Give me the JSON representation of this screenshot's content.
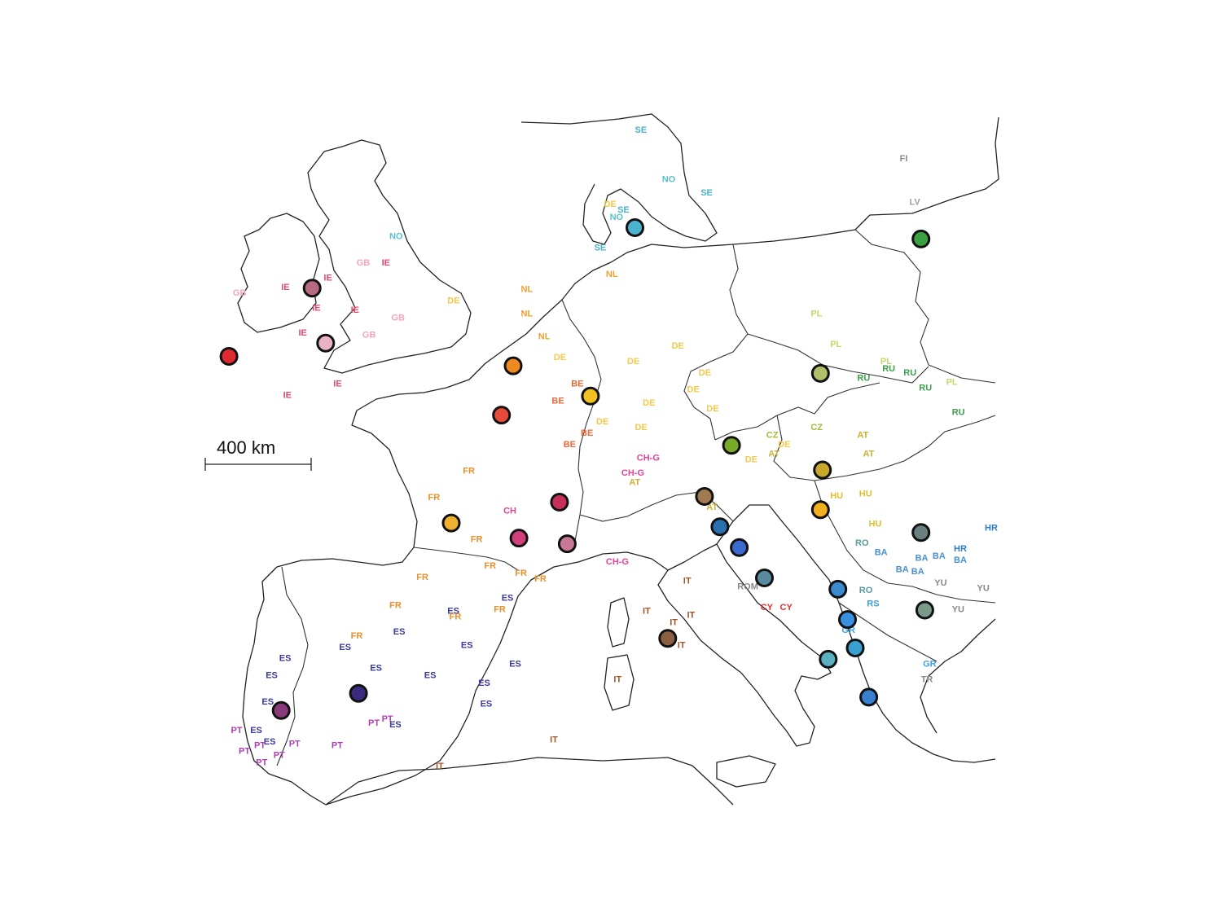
{
  "scale_bar": {
    "label": "400 km"
  },
  "colors": {
    "IE": "#e34a6b",
    "GB": "#f3a6b8",
    "FR": "#e8902a",
    "CH": "#e0449a",
    "DE": "#f2c94c",
    "NL": "#f0a030",
    "BE": "#e86a3a",
    "ES": "#3a3aa0",
    "PT": "#b040b0",
    "IT": "#a0552a",
    "SE": "#4bb3c8",
    "NO": "#5ac0d0",
    "PL": "#c9d46a",
    "RU": "#3aa04a",
    "CZ": "#a8b83a",
    "AT": "#c8b030",
    "HU": "#e0c030",
    "HR": "#2c7bc0",
    "BA": "#4a90d0",
    "RS": "#3aa0e0",
    "RO": "#5a9aa0",
    "GR": "#40a0e0",
    "CY": "#e03030",
    "LV": "#a0a0a0",
    "FI": "#888888"
  },
  "labels": [
    {
      "code": "SE",
      "lon": 12.1,
      "lat": 67.0
    },
    {
      "code": "NO",
      "lon": 13.5,
      "lat": 64.4
    },
    {
      "code": "SE",
      "lon": 15.5,
      "lat": 63.7
    },
    {
      "code": "FI",
      "lon": 25.8,
      "lat": 65.5
    },
    {
      "code": "LV",
      "lon": 26.3,
      "lat": 63.2
    },
    {
      "code": "SE",
      "lon": 11.2,
      "lat": 62.8
    },
    {
      "code": "NO",
      "lon": 10.8,
      "lat": 62.4
    },
    {
      "code": "DE",
      "lon": 10.5,
      "lat": 63.1
    },
    {
      "code": "SE",
      "lon": 10.0,
      "lat": 60.8
    },
    {
      "code": "NO",
      "lon": -0.6,
      "lat": 61.4
    },
    {
      "code": "IE",
      "lon": -1.0,
      "lat": 60.0
    },
    {
      "code": "GB",
      "lon": -2.3,
      "lat": 60.0
    },
    {
      "code": "IE",
      "lon": -4.0,
      "lat": 59.2
    },
    {
      "code": "IE",
      "lon": -4.6,
      "lat": 57.6
    },
    {
      "code": "IE",
      "lon": -5.3,
      "lat": 56.3
    },
    {
      "code": "IE",
      "lon": -6.2,
      "lat": 58.7
    },
    {
      "code": "GB",
      "lon": -8.7,
      "lat": 58.4
    },
    {
      "code": "IE",
      "lon": -2.6,
      "lat": 57.5
    },
    {
      "code": "IE",
      "lon": -3.5,
      "lat": 53.6
    },
    {
      "code": "IE",
      "lon": -6.1,
      "lat": 53.0
    },
    {
      "code": "GB",
      "lon": -2.0,
      "lat": 56.2
    },
    {
      "code": "GB",
      "lon": -0.5,
      "lat": 57.1
    },
    {
      "code": "DE",
      "lon": 2.4,
      "lat": 58.0
    },
    {
      "code": "NL",
      "lon": 10.6,
      "lat": 59.4
    },
    {
      "code": "NL",
      "lon": 6.2,
      "lat": 58.6
    },
    {
      "code": "NL",
      "lon": 6.2,
      "lat": 57.3
    },
    {
      "code": "NL",
      "lon": 7.1,
      "lat": 56.1
    },
    {
      "code": "DE",
      "lon": 7.9,
      "lat": 55.0
    },
    {
      "code": "DE",
      "lon": 11.7,
      "lat": 54.8
    },
    {
      "code": "DE",
      "lon": 14.0,
      "lat": 55.6
    },
    {
      "code": "DE",
      "lon": 15.4,
      "lat": 54.2
    },
    {
      "code": "DE",
      "lon": 14.8,
      "lat": 53.3
    },
    {
      "code": "DE",
      "lon": 12.5,
      "lat": 52.6
    },
    {
      "code": "DE",
      "lon": 15.8,
      "lat": 52.3
    },
    {
      "code": "DE",
      "lon": 10.1,
      "lat": 51.6
    },
    {
      "code": "DE",
      "lon": 12.1,
      "lat": 51.3
    },
    {
      "code": "BE",
      "lon": 9.3,
      "lat": 51.0
    },
    {
      "code": "BE",
      "lon": 8.4,
      "lat": 50.4
    },
    {
      "code": "BE",
      "lon": 7.8,
      "lat": 52.7
    },
    {
      "code": "BE",
      "lon": 8.8,
      "lat": 53.6
    },
    {
      "code": "FR",
      "lon": 3.2,
      "lat": 49.0
    },
    {
      "code": "FR",
      "lon": 1.4,
      "lat": 47.6
    },
    {
      "code": "FR",
      "lon": 3.6,
      "lat": 45.4
    },
    {
      "code": "FR",
      "lon": 4.3,
      "lat": 44.0
    },
    {
      "code": "FR",
      "lon": 0.8,
      "lat": 43.4
    },
    {
      "code": "CH-G",
      "lon": 12.2,
      "lat": 49.7
    },
    {
      "code": "CH-G",
      "lon": 11.4,
      "lat": 48.9
    },
    {
      "code": "CH",
      "lon": 5.3,
      "lat": 46.9
    },
    {
      "code": "CH-G",
      "lon": 10.6,
      "lat": 44.2
    },
    {
      "code": "AT",
      "lon": 11.8,
      "lat": 48.4
    },
    {
      "code": "AT",
      "lon": 15.8,
      "lat": 47.1
    },
    {
      "code": "DE",
      "lon": 17.8,
      "lat": 49.6
    },
    {
      "code": "AT",
      "lon": 19.0,
      "lat": 49.9
    },
    {
      "code": "DE",
      "lon": 19.5,
      "lat": 50.4
    },
    {
      "code": "CZ",
      "lon": 18.9,
      "lat": 50.9
    },
    {
      "code": "PL",
      "lon": 21.2,
      "lat": 57.3
    },
    {
      "code": "PL",
      "lon": 22.2,
      "lat": 55.7
    },
    {
      "code": "PL",
      "lon": 24.8,
      "lat": 54.8
    },
    {
      "code": "RU",
      "lon": 24.9,
      "lat": 54.4
    },
    {
      "code": "RU",
      "lon": 26.0,
      "lat": 54.2
    },
    {
      "code": "RU",
      "lon": 23.6,
      "lat": 53.9
    },
    {
      "code": "RU",
      "lon": 26.8,
      "lat": 53.4
    },
    {
      "code": "RU",
      "lon": 28.5,
      "lat": 52.1
    },
    {
      "code": "PL",
      "lon": 28.2,
      "lat": 53.7
    },
    {
      "code": "CZ",
      "lon": 21.2,
      "lat": 51.3
    },
    {
      "code": "AT",
      "lon": 23.6,
      "lat": 50.9
    },
    {
      "code": "AT",
      "lon": 23.9,
      "lat": 49.9
    },
    {
      "code": "HU",
      "lon": 22.2,
      "lat": 47.7
    },
    {
      "code": "HU",
      "lon": 24.2,
      "lat": 46.2
    },
    {
      "code": "HU",
      "lon": 23.7,
      "lat": 47.8
    },
    {
      "code": "HR",
      "lon": 30.2,
      "lat": 46.0
    },
    {
      "code": "HR",
      "lon": 28.6,
      "lat": 44.9
    },
    {
      "code": "RO",
      "lon": 23.5,
      "lat": 45.2
    },
    {
      "code": "RO",
      "lon": 23.7,
      "lat": 42.7
    },
    {
      "code": "BA",
      "lon": 24.5,
      "lat": 44.7
    },
    {
      "code": "BA",
      "lon": 25.6,
      "lat": 43.8
    },
    {
      "code": "BA",
      "lon": 26.4,
      "lat": 43.7
    },
    {
      "code": "BA",
      "lon": 28.6,
      "lat": 44.3
    },
    {
      "code": "BA",
      "lon": 26.6,
      "lat": 44.4
    },
    {
      "code": "BA",
      "lon": 27.5,
      "lat": 44.5
    },
    {
      "code": "YU",
      "lon": 27.6,
      "lat": 43.1
    },
    {
      "code": "YU",
      "lon": 29.8,
      "lat": 42.8
    },
    {
      "code": "YU",
      "lon": 28.5,
      "lat": 41.7
    },
    {
      "code": "RS",
      "lon": 24.1,
      "lat": 42.0
    },
    {
      "code": "GR",
      "lon": 22.8,
      "lat": 40.6
    },
    {
      "code": "GR",
      "lon": 27.0,
      "lat": 38.8
    },
    {
      "code": "TR",
      "lon": 26.9,
      "lat": 38.0
    },
    {
      "code": "CY",
      "lon": 18.6,
      "lat": 41.8
    },
    {
      "code": "CY",
      "lon": 19.6,
      "lat": 41.8
    },
    {
      "code": "ROM",
      "lon": 17.4,
      "lat": 42.9
    },
    {
      "code": "IT",
      "lon": 14.6,
      "lat": 43.2
    },
    {
      "code": "IT",
      "lon": 13.9,
      "lat": 41.0
    },
    {
      "code": "IT",
      "lon": 14.3,
      "lat": 39.8
    },
    {
      "code": "IT",
      "lon": 12.5,
      "lat": 41.6
    },
    {
      "code": "IT",
      "lon": 14.8,
      "lat": 41.4
    },
    {
      "code": "IT",
      "lon": 11.0,
      "lat": 38.0
    },
    {
      "code": "IT",
      "lon": 1.8,
      "lat": 33.4
    },
    {
      "code": "IT",
      "lon": 7.7,
      "lat": 34.8
    },
    {
      "code": "ES",
      "lon": 5.2,
      "lat": 42.3
    },
    {
      "code": "ES",
      "lon": 2.4,
      "lat": 41.6
    },
    {
      "code": "ES",
      "lon": -0.4,
      "lat": 40.5
    },
    {
      "code": "ES",
      "lon": -3.2,
      "lat": 39.7
    },
    {
      "code": "ES",
      "lon": -6.3,
      "lat": 39.1
    },
    {
      "code": "ES",
      "lon": -7.0,
      "lat": 38.2
    },
    {
      "code": "ES",
      "lon": -1.6,
      "lat": 38.6
    },
    {
      "code": "ES",
      "lon": 1.2,
      "lat": 38.2
    },
    {
      "code": "ES",
      "lon": 4.0,
      "lat": 37.8
    },
    {
      "code": "ES",
      "lon": 5.6,
      "lat": 38.8
    },
    {
      "code": "ES",
      "lon": -7.2,
      "lat": 36.8
    },
    {
      "code": "ES",
      "lon": -7.8,
      "lat": 35.3
    },
    {
      "code": "ES",
      "lon": -7.1,
      "lat": 34.7
    },
    {
      "code": "ES",
      "lon": -0.6,
      "lat": 35.6
    },
    {
      "code": "ES",
      "lon": 4.1,
      "lat": 36.7
    },
    {
      "code": "PT",
      "lon": -8.8,
      "lat": 35.3
    },
    {
      "code": "PT",
      "lon": -8.4,
      "lat": 34.2
    },
    {
      "code": "PT",
      "lon": -7.6,
      "lat": 34.5
    },
    {
      "code": "PT",
      "lon": -5.8,
      "lat": 34.6
    },
    {
      "code": "PT",
      "lon": -6.6,
      "lat": 34.0
    },
    {
      "code": "PT",
      "lon": -7.5,
      "lat": 33.6
    },
    {
      "code": "PT",
      "lon": -3.6,
      "lat": 34.5
    },
    {
      "code": "PT",
      "lon": -1.0,
      "lat": 35.9
    },
    {
      "code": "PT",
      "lon": -1.7,
      "lat": 35.7
    },
    {
      "code": "FR",
      "lon": -2.6,
      "lat": 40.3
    },
    {
      "code": "FR",
      "lon": -0.6,
      "lat": 41.9
    },
    {
      "code": "ES",
      "lon": 3.1,
      "lat": 39.8
    },
    {
      "code": "FR",
      "lon": 2.5,
      "lat": 41.3
    },
    {
      "code": "FR",
      "lon": 4.8,
      "lat": 41.7
    },
    {
      "code": "FR",
      "lon": 5.9,
      "lat": 43.6
    },
    {
      "code": "FR",
      "lon": 6.9,
      "lat": 43.3
    }
  ],
  "markers": [
    {
      "lon": -8.9,
      "lat": 55.2,
      "color": "#e02830"
    },
    {
      "lon": -4.6,
      "lat": 58.8,
      "color": "#b56a80"
    },
    {
      "lon": -3.9,
      "lat": 55.9,
      "color": "#e8b4c4"
    },
    {
      "lon": 5.8,
      "lat": 54.7,
      "color": "#f08a20"
    },
    {
      "lon": 5.2,
      "lat": 52.1,
      "color": "#e84a3a"
    },
    {
      "lon": 9.8,
      "lat": 53.1,
      "color": "#f2c020"
    },
    {
      "lon": 2.6,
      "lat": 46.4,
      "color": "#f0b030"
    },
    {
      "lon": 6.1,
      "lat": 45.6,
      "color": "#d0407a"
    },
    {
      "lon": 8.2,
      "lat": 47.5,
      "color": "#c8305a"
    },
    {
      "lon": 8.6,
      "lat": 45.3,
      "color": "#c87894"
    },
    {
      "lon": 12.1,
      "lat": 62.0,
      "color": "#4ab4d0"
    },
    {
      "lon": 26.9,
      "lat": 61.4,
      "color": "#3aa040"
    },
    {
      "lon": 21.7,
      "lat": 54.3,
      "color": "#b0c06a"
    },
    {
      "lon": 17.1,
      "lat": 50.5,
      "color": "#7aaa2a"
    },
    {
      "lon": 21.8,
      "lat": 49.2,
      "color": "#c8a82a"
    },
    {
      "lon": 21.7,
      "lat": 47.1,
      "color": "#f0b020"
    },
    {
      "lon": 15.7,
      "lat": 47.8,
      "color": "#a07a50"
    },
    {
      "lon": 16.5,
      "lat": 46.2,
      "color": "#2a70b0"
    },
    {
      "lon": 17.5,
      "lat": 45.1,
      "color": "#3a6ad0"
    },
    {
      "lon": 18.8,
      "lat": 43.5,
      "color": "#5a8aa0"
    },
    {
      "lon": 22.6,
      "lat": 42.9,
      "color": "#3a8ad0"
    },
    {
      "lon": 23.1,
      "lat": 41.3,
      "color": "#3a90e0"
    },
    {
      "lon": 23.5,
      "lat": 39.8,
      "color": "#3aa0d0"
    },
    {
      "lon": 22.1,
      "lat": 39.2,
      "color": "#5ab0c0"
    },
    {
      "lon": 26.9,
      "lat": 45.9,
      "color": "#6a8080"
    },
    {
      "lon": 27.1,
      "lat": 41.8,
      "color": "#7a9a8a"
    },
    {
      "lon": 24.2,
      "lat": 37.2,
      "color": "#3a80d0"
    },
    {
      "lon": 13.8,
      "lat": 40.3,
      "color": "#8a6040"
    },
    {
      "lon": -2.2,
      "lat": 37.4,
      "color": "#3a2a80"
    },
    {
      "lon": -6.2,
      "lat": 36.5,
      "color": "#8a3a7a"
    }
  ]
}
